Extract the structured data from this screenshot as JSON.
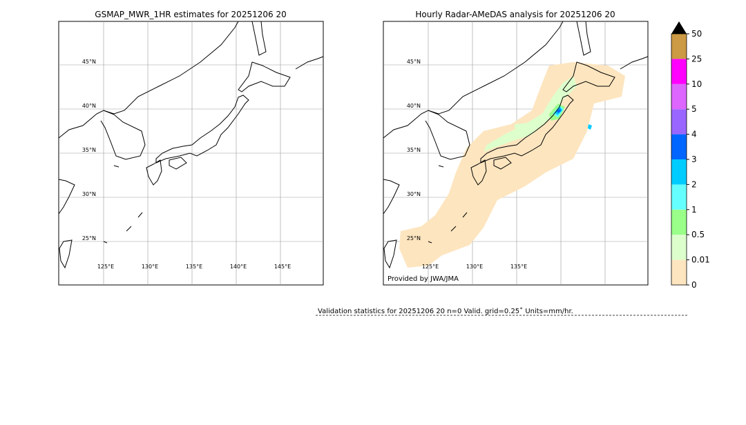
{
  "panels": [
    {
      "title": "GSMAP_MWR_1HR estimates for 20251206 20",
      "lat_labels": [
        "45°N",
        "40°N",
        "35°N",
        "30°N",
        "25°N"
      ],
      "lon_labels": [
        "125°E",
        "130°E",
        "135°E",
        "140°E",
        "145°E"
      ]
    },
    {
      "title": "Hourly Radar-AMeDAS analysis for 20251206 20",
      "lat_labels": [
        "45°N",
        "40°N",
        "35°N",
        "30°N",
        "25°N"
      ],
      "lon_labels": [
        "125°E",
        "130°E",
        "135°E"
      ],
      "credit": "Provided by JWA/JMA"
    }
  ],
  "colorbar": {
    "levels": [
      0,
      0.01,
      0.5,
      1,
      2,
      3,
      4,
      5,
      10,
      25,
      50
    ],
    "colors": [
      "#fde5bf",
      "#ddffcc",
      "#99ff88",
      "#66ffff",
      "#00ccff",
      "#0066ff",
      "#9966ff",
      "#dd66ff",
      "#ff00ff",
      "#cc9944"
    ],
    "extend_color": "#000000"
  },
  "validation": "Validation statistics for 20251206 20  n=0 Valid. grid=0.25˚ Units=mm/hr."
}
